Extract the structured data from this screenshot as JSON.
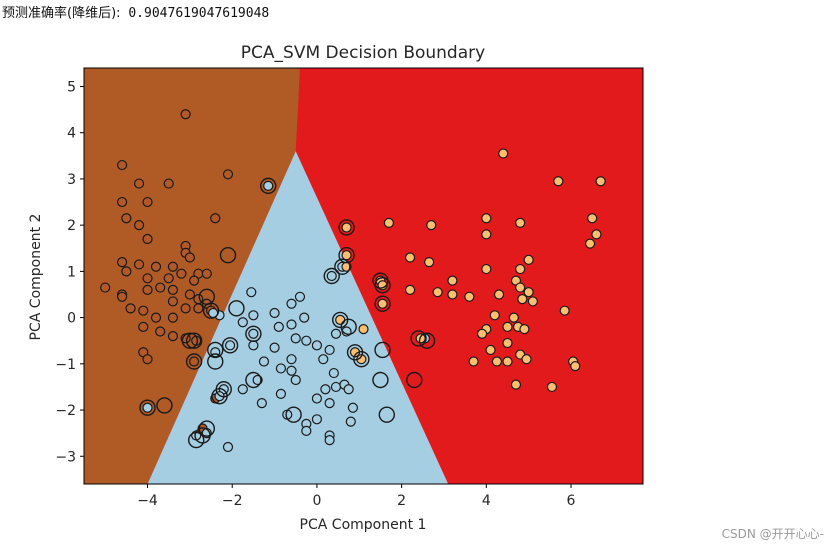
{
  "header": {
    "label": "预测准确率(降维后):",
    "value": "0.9047619047619048"
  },
  "watermark": "CSDN @开开心心-",
  "colors": {
    "region_class0": "#b05a26",
    "region_class1": "#a6cee3",
    "region_class2": "#e31a1c",
    "point_class0": "#b15928",
    "point_class1": "#a6cee3",
    "point_class2": "#fdbf6f",
    "edge": "#1a1a1a"
  },
  "chart_data": {
    "type": "scatter",
    "title": "PCA_SVM Decision Boundary",
    "xlabel": "PCA Component 1",
    "ylabel": "PCA Component 2",
    "xlim": [
      -5.5,
      7.7
    ],
    "ylim": [
      -3.6,
      5.4
    ],
    "xticks": [
      -4,
      -2,
      0,
      2,
      4,
      6
    ],
    "yticks": [
      -3,
      -2,
      -1,
      0,
      1,
      2,
      3,
      4,
      5
    ],
    "tick_labels_x": [
      "−4",
      "−2",
      "0",
      "2",
      "4",
      "6"
    ],
    "tick_labels_y": [
      "−3",
      "−2",
      "−1",
      "0",
      "1",
      "2",
      "3",
      "4",
      "5"
    ],
    "grid": false,
    "legend": "none",
    "decision_boundary": {
      "apex": [
        -0.5,
        3.6
      ],
      "left_edge": [
        [
          -0.5,
          3.6
        ],
        [
          -0.4,
          5.4
        ],
        [
          -4.0,
          -3.6
        ]
      ],
      "right_edge": [
        [
          -0.5,
          3.6
        ],
        [
          -0.4,
          5.4
        ],
        [
          3.1,
          -3.6
        ]
      ],
      "regions": [
        "class0 left",
        "class1 bottom-center",
        "class2 right"
      ]
    },
    "series": [
      {
        "class": 0,
        "points": [
          [
            -3.1,
            4.4
          ],
          [
            -4.6,
            3.3
          ],
          [
            -4.2,
            2.9
          ],
          [
            -3.5,
            2.9
          ],
          [
            -2.1,
            3.1
          ],
          [
            -4.6,
            2.5
          ],
          [
            -4.0,
            2.5
          ],
          [
            -4.5,
            2.15
          ],
          [
            -4.2,
            2.0
          ],
          [
            -2.4,
            2.15
          ],
          [
            -4.0,
            1.7
          ],
          [
            -3.1,
            1.55
          ],
          [
            -3.1,
            1.4
          ],
          [
            -3.0,
            1.3
          ],
          [
            -4.6,
            1.2
          ],
          [
            -4.5,
            1.0
          ],
          [
            -4.2,
            1.15
          ],
          [
            -3.8,
            1.1
          ],
          [
            -3.4,
            1.1
          ],
          [
            -3.2,
            0.95
          ],
          [
            -2.8,
            0.95
          ],
          [
            -2.6,
            0.95
          ],
          [
            -4.0,
            0.85
          ],
          [
            -3.5,
            0.85
          ],
          [
            -2.9,
            0.8
          ],
          [
            -5.0,
            0.65
          ],
          [
            -4.6,
            0.5
          ],
          [
            -4.6,
            0.45
          ],
          [
            -4.0,
            0.6
          ],
          [
            -3.7,
            0.65
          ],
          [
            -3.4,
            0.6
          ],
          [
            -3.4,
            0.35
          ],
          [
            -3.0,
            0.5
          ],
          [
            -2.8,
            0.4
          ],
          [
            -2.6,
            0.3
          ],
          [
            -4.4,
            0.2
          ],
          [
            -4.1,
            0.15
          ],
          [
            -3.8,
            0.0
          ],
          [
            -3.4,
            0.0
          ],
          [
            -3.1,
            0.2
          ],
          [
            -2.8,
            0.2
          ],
          [
            -2.5,
            0.15
          ],
          [
            -4.1,
            -0.2
          ],
          [
            -3.7,
            -0.3
          ],
          [
            -3.4,
            -0.4
          ],
          [
            -3.1,
            -0.45
          ],
          [
            -2.85,
            -0.5
          ],
          [
            -4.1,
            -0.75
          ],
          [
            -4.0,
            -0.9
          ],
          [
            -2.9,
            -0.95
          ],
          [
            -2.4,
            -1.75
          ],
          [
            -2.7,
            -2.4
          ]
        ]
      },
      {
        "class": 1,
        "points": [
          [
            -1.15,
            2.85
          ],
          [
            0.35,
            0.9
          ],
          [
            0.6,
            1.1
          ],
          [
            -0.4,
            0.45
          ],
          [
            -0.6,
            0.3
          ],
          [
            -0.3,
            0.0
          ],
          [
            -1.0,
            0.1
          ],
          [
            -1.5,
            0.05
          ],
          [
            -0.9,
            -0.2
          ],
          [
            -0.6,
            -0.15
          ],
          [
            -1.75,
            -0.1
          ],
          [
            -2.3,
            0.05
          ],
          [
            -1.5,
            -0.35
          ],
          [
            -0.5,
            -0.45
          ],
          [
            -0.25,
            -0.5
          ],
          [
            0.45,
            -0.35
          ],
          [
            0.7,
            -0.3
          ],
          [
            -1.5,
            -0.6
          ],
          [
            -1.0,
            -0.65
          ],
          [
            0.0,
            -0.6
          ],
          [
            0.3,
            -0.7
          ],
          [
            -0.6,
            -0.9
          ],
          [
            0.15,
            -0.9
          ],
          [
            -1.25,
            -0.95
          ],
          [
            -0.85,
            -1.1
          ],
          [
            -0.6,
            -1.15
          ],
          [
            -1.4,
            -1.35
          ],
          [
            -0.5,
            -1.35
          ],
          [
            0.4,
            -1.2
          ],
          [
            -2.2,
            -1.55
          ],
          [
            -1.75,
            -1.55
          ],
          [
            0.2,
            -1.55
          ],
          [
            0.45,
            -1.5
          ],
          [
            0.65,
            -1.45
          ],
          [
            0.75,
            -1.55
          ],
          [
            -0.85,
            -1.65
          ],
          [
            0.0,
            -1.75
          ],
          [
            -1.3,
            -1.85
          ],
          [
            0.3,
            -1.85
          ],
          [
            0.85,
            -1.95
          ],
          [
            -2.3,
            -1.7
          ],
          [
            -0.7,
            -2.1
          ],
          [
            0.0,
            -2.2
          ],
          [
            -0.25,
            -2.3
          ],
          [
            -0.25,
            -2.45
          ],
          [
            0.8,
            -2.25
          ],
          [
            0.3,
            -2.55
          ],
          [
            0.3,
            -2.65
          ],
          [
            -2.1,
            -2.8
          ],
          [
            -2.85,
            -2.55
          ],
          [
            -2.6,
            -2.5
          ],
          [
            -4.0,
            -1.95
          ],
          [
            -2.45,
            0.1
          ],
          [
            2.55,
            -0.45
          ],
          [
            -2.05,
            -0.6
          ],
          [
            -2.4,
            -0.75
          ],
          [
            -1.55,
            0.55
          ]
        ]
      },
      {
        "class": 2,
        "points": [
          [
            4.4,
            3.55
          ],
          [
            5.7,
            2.95
          ],
          [
            6.7,
            2.95
          ],
          [
            0.7,
            1.95
          ],
          [
            1.7,
            2.05
          ],
          [
            2.7,
            2.0
          ],
          [
            4.0,
            2.15
          ],
          [
            4.8,
            2.05
          ],
          [
            6.5,
            2.15
          ],
          [
            6.6,
            1.8
          ],
          [
            4.0,
            1.8
          ],
          [
            6.45,
            1.6
          ],
          [
            0.7,
            1.35
          ],
          [
            2.2,
            1.3
          ],
          [
            2.65,
            1.2
          ],
          [
            3.2,
            0.8
          ],
          [
            4.0,
            1.05
          ],
          [
            4.8,
            1.05
          ],
          [
            5.0,
            1.25
          ],
          [
            1.5,
            0.8
          ],
          [
            1.55,
            0.7
          ],
          [
            2.2,
            0.6
          ],
          [
            2.85,
            0.55
          ],
          [
            3.2,
            0.5
          ],
          [
            3.6,
            0.45
          ],
          [
            4.3,
            0.5
          ],
          [
            4.7,
            0.8
          ],
          [
            4.8,
            0.65
          ],
          [
            4.85,
            0.4
          ],
          [
            5.0,
            0.55
          ],
          [
            5.1,
            0.35
          ],
          [
            1.55,
            0.3
          ],
          [
            5.85,
            0.15
          ],
          [
            4.2,
            0.05
          ],
          [
            4.65,
            0.0
          ],
          [
            4.75,
            -0.2
          ],
          [
            4.5,
            -0.2
          ],
          [
            4.0,
            -0.25
          ],
          [
            1.1,
            -0.25
          ],
          [
            0.55,
            -0.05
          ],
          [
            2.45,
            -0.45
          ],
          [
            3.9,
            -0.35
          ],
          [
            4.5,
            -0.55
          ],
          [
            4.9,
            -0.25
          ],
          [
            4.1,
            -0.7
          ],
          [
            4.8,
            -0.8
          ],
          [
            4.95,
            -0.9
          ],
          [
            4.25,
            -0.95
          ],
          [
            4.5,
            -0.95
          ],
          [
            1.05,
            -0.9
          ],
          [
            0.9,
            -0.75
          ],
          [
            3.7,
            -0.95
          ],
          [
            6.05,
            -0.95
          ],
          [
            6.1,
            -1.05
          ],
          [
            4.7,
            -1.45
          ],
          [
            5.55,
            -1.5
          ],
          [
            0.7,
            1.1
          ]
        ]
      }
    ],
    "support_vectors": [
      [
        -1.15,
        2.85
      ],
      [
        0.7,
        1.95
      ],
      [
        0.7,
        1.35
      ],
      [
        -2.1,
        1.35
      ],
      [
        0.35,
        0.9
      ],
      [
        0.6,
        1.1
      ],
      [
        1.5,
        0.8
      ],
      [
        1.55,
        0.7
      ],
      [
        1.55,
        0.3
      ],
      [
        -2.6,
        0.45
      ],
      [
        -1.9,
        0.2
      ],
      [
        -2.5,
        0.15
      ],
      [
        0.55,
        -0.05
      ],
      [
        0.75,
        -0.2
      ],
      [
        -1.5,
        -0.35
      ],
      [
        -3.0,
        -0.5
      ],
      [
        -2.9,
        -0.5
      ],
      [
        -2.4,
        -0.7
      ],
      [
        -2.05,
        -0.6
      ],
      [
        1.55,
        -0.7
      ],
      [
        0.9,
        -0.75
      ],
      [
        1.05,
        -0.9
      ],
      [
        2.4,
        -0.45
      ],
      [
        2.6,
        -0.5
      ],
      [
        -2.9,
        -0.95
      ],
      [
        -2.4,
        -0.95
      ],
      [
        -1.5,
        -1.35
      ],
      [
        1.5,
        -1.35
      ],
      [
        2.3,
        -1.35
      ],
      [
        -2.2,
        -1.55
      ],
      [
        -2.3,
        -1.7
      ],
      [
        -4.0,
        -1.95
      ],
      [
        -3.6,
        -1.9
      ],
      [
        -0.55,
        -2.1
      ],
      [
        1.65,
        -2.1
      ],
      [
        -2.6,
        -2.4
      ],
      [
        -2.7,
        -2.55
      ],
      [
        -2.85,
        -2.65
      ]
    ]
  }
}
